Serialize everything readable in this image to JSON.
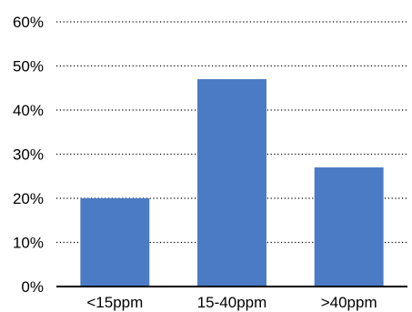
{
  "chart_data": {
    "type": "bar",
    "title": "",
    "xlabel": "",
    "ylabel": "",
    "categories": [
      "<15ppm",
      "15-40ppm",
      ">40ppm"
    ],
    "values": [
      20,
      47,
      27
    ],
    "ylim": [
      0,
      60
    ],
    "yticks": [
      "0%",
      "10%",
      "20%",
      "30%",
      "40%",
      "50%",
      "60%"
    ],
    "grid": true,
    "legend": "none",
    "bar_color": "#4a7bc4"
  }
}
